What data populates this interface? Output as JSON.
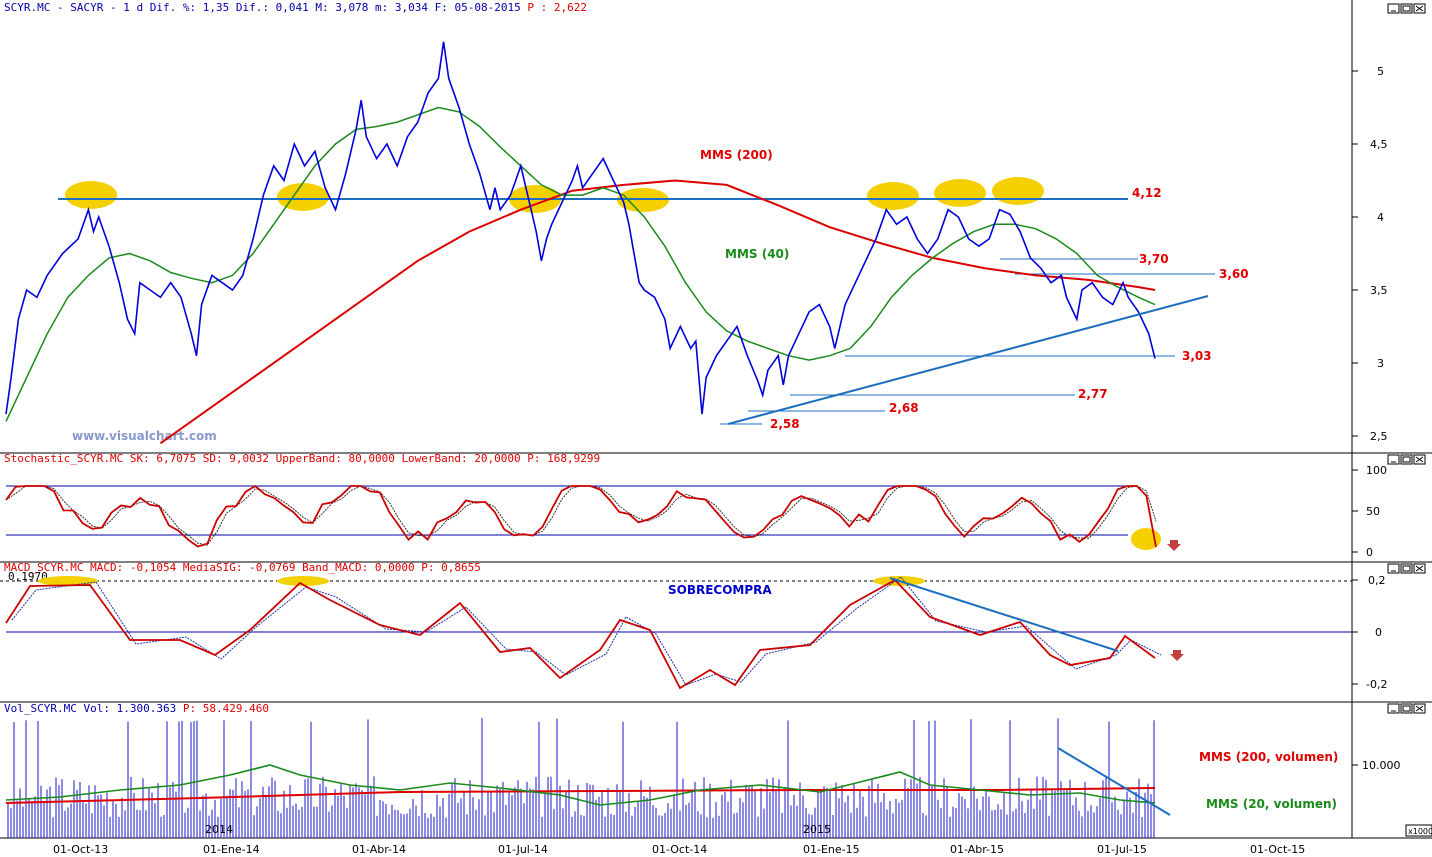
{
  "chart_data": [
    {
      "type": "line",
      "header": {
        "symbol": "SCYR.MC",
        "name": "SACYR",
        "period": "1 d",
        "dif_pct_label": "Dif. %:",
        "dif_pct": "1,35",
        "dif_label": "Dif.:",
        "dif": "0,041",
        "max_label": "M:",
        "max": "3,078",
        "min_label": "m:",
        "min": "3,034",
        "date_label": "F:",
        "date": "05-08-2015",
        "price_label": "P :",
        "price": "2,622"
      },
      "watermark": "www.visualchart.com",
      "yticks": [
        "5",
        "4,5",
        "4",
        "3,5",
        "3",
        "2,5"
      ],
      "ytick_values": [
        5,
        4.5,
        4,
        3.5,
        3,
        2.5
      ],
      "ylim": [
        2.45,
        5.45
      ],
      "price_series": [
        [
          0,
          2.65
        ],
        [
          5,
          2.9
        ],
        [
          12,
          3.3
        ],
        [
          20,
          3.5
        ],
        [
          30,
          3.45
        ],
        [
          40,
          3.6
        ],
        [
          55,
          3.75
        ],
        [
          70,
          3.85
        ],
        [
          80,
          4.05
        ],
        [
          85,
          3.9
        ],
        [
          90,
          4.0
        ],
        [
          100,
          3.8
        ],
        [
          110,
          3.55
        ],
        [
          118,
          3.3
        ],
        [
          125,
          3.2
        ],
        [
          130,
          3.55
        ],
        [
          140,
          3.5
        ],
        [
          150,
          3.45
        ],
        [
          160,
          3.55
        ],
        [
          170,
          3.45
        ],
        [
          180,
          3.2
        ],
        [
          185,
          3.05
        ],
        [
          190,
          3.4
        ],
        [
          200,
          3.6
        ],
        [
          210,
          3.55
        ],
        [
          220,
          3.5
        ],
        [
          230,
          3.6
        ],
        [
          240,
          3.85
        ],
        [
          250,
          4.15
        ],
        [
          260,
          4.35
        ],
        [
          270,
          4.25
        ],
        [
          280,
          4.5
        ],
        [
          290,
          4.35
        ],
        [
          300,
          4.45
        ],
        [
          310,
          4.2
        ],
        [
          320,
          4.05
        ],
        [
          330,
          4.3
        ],
        [
          340,
          4.6
        ],
        [
          345,
          4.8
        ],
        [
          350,
          4.55
        ],
        [
          360,
          4.4
        ],
        [
          370,
          4.5
        ],
        [
          380,
          4.35
        ],
        [
          390,
          4.55
        ],
        [
          400,
          4.65
        ],
        [
          410,
          4.85
        ],
        [
          420,
          4.95
        ],
        [
          425,
          5.2
        ],
        [
          430,
          4.95
        ],
        [
          440,
          4.75
        ],
        [
          450,
          4.5
        ],
        [
          460,
          4.3
        ],
        [
          470,
          4.05
        ],
        [
          475,
          4.2
        ],
        [
          480,
          4.05
        ],
        [
          490,
          4.15
        ],
        [
          500,
          4.35
        ],
        [
          510,
          4.05
        ],
        [
          515,
          3.9
        ],
        [
          520,
          3.7
        ],
        [
          525,
          3.85
        ],
        [
          530,
          3.95
        ],
        [
          540,
          4.1
        ],
        [
          550,
          4.25
        ],
        [
          555,
          4.35
        ],
        [
          560,
          4.2
        ],
        [
          570,
          4.3
        ],
        [
          580,
          4.4
        ],
        [
          590,
          4.25
        ],
        [
          600,
          4.1
        ],
        [
          605,
          3.95
        ],
        [
          610,
          3.75
        ],
        [
          615,
          3.55
        ],
        [
          620,
          3.5
        ],
        [
          630,
          3.45
        ],
        [
          640,
          3.3
        ],
        [
          645,
          3.1
        ],
        [
          655,
          3.25
        ],
        [
          665,
          3.1
        ],
        [
          670,
          3.15
        ],
        [
          676,
          2.65
        ],
        [
          680,
          2.9
        ],
        [
          690,
          3.05
        ],
        [
          700,
          3.15
        ],
        [
          710,
          3.25
        ],
        [
          720,
          3.05
        ],
        [
          730,
          2.88
        ],
        [
          735,
          2.78
        ],
        [
          740,
          2.95
        ],
        [
          750,
          3.05
        ],
        [
          755,
          2.85
        ],
        [
          760,
          3.05
        ],
        [
          770,
          3.2
        ],
        [
          780,
          3.35
        ],
        [
          790,
          3.4
        ],
        [
          800,
          3.25
        ],
        [
          805,
          3.1
        ],
        [
          815,
          3.4
        ],
        [
          825,
          3.55
        ],
        [
          835,
          3.7
        ],
        [
          845,
          3.85
        ],
        [
          855,
          4.05
        ],
        [
          865,
          3.95
        ],
        [
          875,
          4.0
        ],
        [
          885,
          3.85
        ],
        [
          895,
          3.75
        ],
        [
          905,
          3.85
        ],
        [
          915,
          4.05
        ],
        [
          925,
          4.0
        ],
        [
          935,
          3.85
        ],
        [
          945,
          3.8
        ],
        [
          955,
          3.85
        ],
        [
          965,
          4.05
        ],
        [
          975,
          4.02
        ],
        [
          985,
          3.9
        ],
        [
          995,
          3.72
        ],
        [
          1005,
          3.65
        ],
        [
          1015,
          3.55
        ],
        [
          1025,
          3.6
        ],
        [
          1030,
          3.45
        ],
        [
          1040,
          3.3
        ],
        [
          1045,
          3.5
        ],
        [
          1055,
          3.55
        ],
        [
          1065,
          3.45
        ],
        [
          1075,
          3.4
        ],
        [
          1085,
          3.55
        ],
        [
          1090,
          3.45
        ],
        [
          1100,
          3.35
        ],
        [
          1110,
          3.2
        ],
        [
          1116,
          3.03
        ]
      ],
      "mms40_series": [
        [
          0,
          2.6
        ],
        [
          20,
          2.9
        ],
        [
          40,
          3.2
        ],
        [
          60,
          3.45
        ],
        [
          80,
          3.6
        ],
        [
          100,
          3.72
        ],
        [
          120,
          3.75
        ],
        [
          140,
          3.7
        ],
        [
          160,
          3.62
        ],
        [
          180,
          3.58
        ],
        [
          200,
          3.55
        ],
        [
          220,
          3.6
        ],
        [
          240,
          3.75
        ],
        [
          260,
          3.95
        ],
        [
          280,
          4.15
        ],
        [
          300,
          4.35
        ],
        [
          320,
          4.5
        ],
        [
          340,
          4.6
        ],
        [
          360,
          4.62
        ],
        [
          380,
          4.65
        ],
        [
          400,
          4.7
        ],
        [
          420,
          4.75
        ],
        [
          440,
          4.72
        ],
        [
          460,
          4.62
        ],
        [
          480,
          4.48
        ],
        [
          500,
          4.35
        ],
        [
          520,
          4.22
        ],
        [
          540,
          4.15
        ],
        [
          560,
          4.15
        ],
        [
          580,
          4.2
        ],
        [
          600,
          4.15
        ],
        [
          620,
          4.0
        ],
        [
          640,
          3.8
        ],
        [
          660,
          3.55
        ],
        [
          680,
          3.35
        ],
        [
          700,
          3.22
        ],
        [
          720,
          3.15
        ],
        [
          740,
          3.1
        ],
        [
          760,
          3.05
        ],
        [
          780,
          3.02
        ],
        [
          800,
          3.05
        ],
        [
          820,
          3.1
        ],
        [
          840,
          3.25
        ],
        [
          860,
          3.45
        ],
        [
          880,
          3.6
        ],
        [
          900,
          3.72
        ],
        [
          920,
          3.82
        ],
        [
          940,
          3.9
        ],
        [
          960,
          3.95
        ],
        [
          980,
          3.95
        ],
        [
          1000,
          3.92
        ],
        [
          1020,
          3.85
        ],
        [
          1040,
          3.75
        ],
        [
          1060,
          3.6
        ],
        [
          1080,
          3.52
        ],
        [
          1100,
          3.45
        ],
        [
          1116,
          3.4
        ]
      ],
      "mms200_series": [
        [
          150,
          2.45
        ],
        [
          200,
          2.7
        ],
        [
          250,
          2.95
        ],
        [
          300,
          3.2
        ],
        [
          350,
          3.45
        ],
        [
          400,
          3.7
        ],
        [
          450,
          3.9
        ],
        [
          500,
          4.05
        ],
        [
          550,
          4.18
        ],
        [
          600,
          4.22
        ],
        [
          650,
          4.25
        ],
        [
          700,
          4.22
        ],
        [
          750,
          4.08
        ],
        [
          800,
          3.93
        ],
        [
          850,
          3.82
        ],
        [
          900,
          3.72
        ],
        [
          950,
          3.65
        ],
        [
          1000,
          3.6
        ],
        [
          1050,
          3.57
        ],
        [
          1100,
          3.52
        ],
        [
          1116,
          3.5
        ]
      ],
      "annotations": [
        {
          "label": "MMS (200)",
          "color": "#e00000"
        },
        {
          "label": "MMS (40)",
          "color": "#1a8a1a"
        },
        {
          "label": "4,12",
          "value": 4.12,
          "color": "#e00000"
        },
        {
          "label": "3,70",
          "value": 3.7,
          "color": "#e00000"
        },
        {
          "label": "3,60",
          "value": 3.6,
          "color": "#e00000"
        },
        {
          "label": "3,03",
          "value": 3.03,
          "color": "#e00000"
        },
        {
          "label": "2,77",
          "value": 2.77,
          "color": "#e00000"
        },
        {
          "label": "2,68",
          "value": 2.68,
          "color": "#e00000"
        },
        {
          "label": "2,58",
          "value": 2.58,
          "color": "#e00000"
        }
      ]
    },
    {
      "type": "line",
      "header": {
        "name": "Stochastic_SCYR.MC",
        "sk_label": "SK:",
        "sk": "6,7075",
        "sd_label": "SD:",
        "sd": "9,0032",
        "upper_label": "UpperBand:",
        "upper": "80,0000",
        "lower_label": "LowerBand:",
        "lower": "20,0000",
        "p_label": "P:",
        "p": "168,9299"
      },
      "yticks": [
        "100",
        "50",
        "0"
      ],
      "ytick_values": [
        100,
        50,
        0
      ],
      "ylim": [
        -5,
        105
      ],
      "bands": [
        80,
        20
      ]
    },
    {
      "type": "line",
      "header": {
        "name": "MACD_SCYR.MC",
        "macd_label": "MACD:",
        "macd": "-0,1054",
        "sig_label": "MediaSIG:",
        "sig": "-0,0769",
        "band_label": "Band_MACD:",
        "band": "0,0000",
        "p_label": "P:",
        "p": "0,8655"
      },
      "small_value": "0,1970",
      "yticks": [
        "0,2",
        "0",
        "-0,2"
      ],
      "ytick_values": [
        0.2,
        0,
        -0.2
      ],
      "ylim": [
        -0.26,
        0.22
      ],
      "annotation": "SOBRECOMPRA"
    },
    {
      "type": "bar",
      "header": {
        "name": "Vol_SCYR.MC",
        "vol_label": "Vol:",
        "vol": "1.300.363",
        "p_label": "P:",
        "p": "58.429.460"
      },
      "yticks": [
        "10.000"
      ],
      "ytick_values": [
        10000
      ],
      "multiplier": "x1000",
      "labels": [
        {
          "label": "MMS (200, volumen)",
          "color": "#e00000"
        },
        {
          "label": "MMS (20, volumen)",
          "color": "#1a8a1a"
        }
      ],
      "year_labels": [
        "2014",
        "2015"
      ]
    }
  ],
  "xaxis": {
    "labels": [
      "01-Oct-13",
      "01-Ene-14",
      "01-Abr-14",
      "01-Jul-14",
      "01-Oct-14",
      "01-Ene-15",
      "01-Abr-15",
      "01-Jul-15",
      "01-Oct-15"
    ]
  },
  "colors": {
    "price": "#0000dd",
    "mms40": "#1a8a1a",
    "mms200": "#dd0000",
    "trend": "#1e6fc0",
    "highlight": "#f5d000"
  }
}
